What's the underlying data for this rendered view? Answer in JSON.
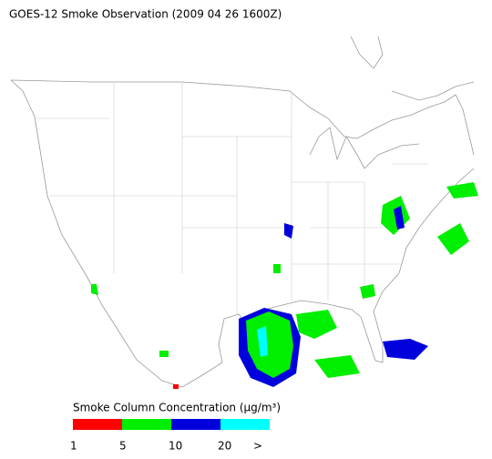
{
  "title": "GOES-12 Smoke Observation (2009 04 26  1600Z)",
  "legend": {
    "title": "Smoke Column Concentration (μg/m³)",
    "colors": [
      "#ff0000",
      "#00ee00",
      "#0000dd",
      "#00ffff"
    ],
    "ticks": [
      1,
      5,
      10,
      20
    ],
    "overflow_label": ">"
  }
}
